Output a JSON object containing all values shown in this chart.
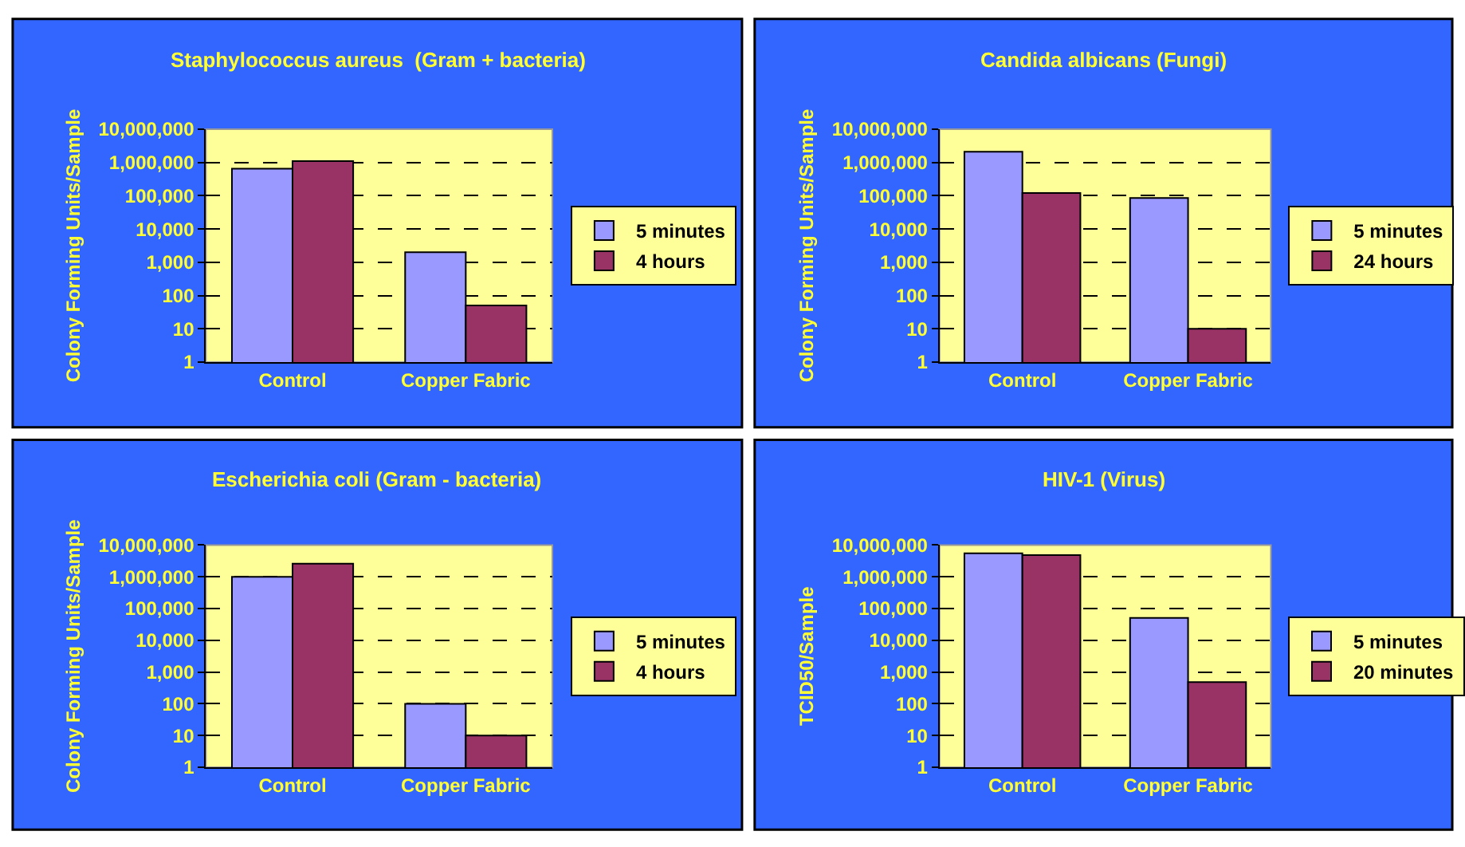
{
  "chart_data": [
    {
      "type": "bar",
      "title": "Staphylococcus aureus  (Gram + bacteria)",
      "ylabel": "Colony Forming Units/Sample",
      "categories": [
        "Control",
        "Copper Fabric"
      ],
      "log": true,
      "ylim": [
        1,
        10000000
      ],
      "yticks": [
        1,
        10,
        100,
        {
          "value": 1000,
          "label": "1,000"
        },
        {
          "value": 10000,
          "label": "10,000"
        },
        {
          "value": 100000,
          "label": "100,000"
        },
        {
          "value": 1000000,
          "label": "1,000,000"
        },
        {
          "value": 10000000,
          "label": "10,000,000"
        }
      ],
      "grid": "y",
      "legend": "right",
      "series": [
        {
          "name": "5 minutes",
          "color": "#9999ff",
          "values": [
            650000,
            2000
          ]
        },
        {
          "name": "4 hours",
          "color": "#993366",
          "values": [
            1100000,
            50
          ]
        }
      ]
    },
    {
      "type": "bar",
      "title": "Candida albicans (Fungi)",
      "ylabel": "Colony Forming Units/Sample",
      "categories": [
        "Control",
        "Copper Fabric"
      ],
      "log": true,
      "ylim": [
        1,
        10000000
      ],
      "yticks": [
        1,
        10,
        100,
        {
          "value": 1000,
          "label": "1,000"
        },
        {
          "value": 10000,
          "label": "10,000"
        },
        {
          "value": 100000,
          "label": "100,000"
        },
        {
          "value": 1000000,
          "label": "1,000,000"
        },
        {
          "value": 10000000,
          "label": "10,000,000"
        }
      ],
      "grid": "y",
      "legend": "right",
      "series": [
        {
          "name": "5 minutes",
          "color": "#9999ff",
          "values": [
            2100000,
            85000
          ]
        },
        {
          "name": "24 hours",
          "color": "#993366",
          "values": [
            120000,
            10
          ]
        }
      ]
    },
    {
      "type": "bar",
      "title": "Escherichia coli (Gram - bacteria)",
      "ylabel": "Colony Forming Units/Sample",
      "categories": [
        "Control",
        "Copper Fabric"
      ],
      "log": true,
      "ylim": [
        1,
        10000000
      ],
      "yticks": [
        1,
        10,
        100,
        {
          "value": 1000,
          "label": "1,000"
        },
        {
          "value": 10000,
          "label": "10,000"
        },
        {
          "value": 100000,
          "label": "100,000"
        },
        {
          "value": 1000000,
          "label": "1,000,000"
        },
        {
          "value": 10000000,
          "label": "10,000,000"
        }
      ],
      "grid": "y",
      "legend": "right",
      "series": [
        {
          "name": "5 minutes",
          "color": "#9999ff",
          "values": [
            1000000,
            100
          ]
        },
        {
          "name": "4 hours",
          "color": "#993366",
          "values": [
            2600000,
            10
          ]
        }
      ]
    },
    {
      "type": "bar",
      "title": "HIV-1 (Virus)",
      "ylabel": "TCID50/Sample",
      "categories": [
        "Control",
        "Copper Fabric"
      ],
      "log": true,
      "ylim": [
        1,
        10000000
      ],
      "yticks": [
        1,
        10,
        100,
        {
          "value": 1000,
          "label": "1,000"
        },
        {
          "value": 10000,
          "label": "10,000"
        },
        {
          "value": 100000,
          "label": "100,000"
        },
        {
          "value": 1000000,
          "label": "1,000,000"
        },
        {
          "value": 10000000,
          "label": "10,000,000"
        }
      ],
      "grid": "y",
      "legend": "right",
      "series": [
        {
          "name": "5 minutes",
          "color": "#9999ff",
          "values": [
            5500000,
            51000
          ]
        },
        {
          "name": "20 minutes",
          "color": "#993366",
          "values": [
            4800000,
            480
          ]
        }
      ]
    }
  ]
}
